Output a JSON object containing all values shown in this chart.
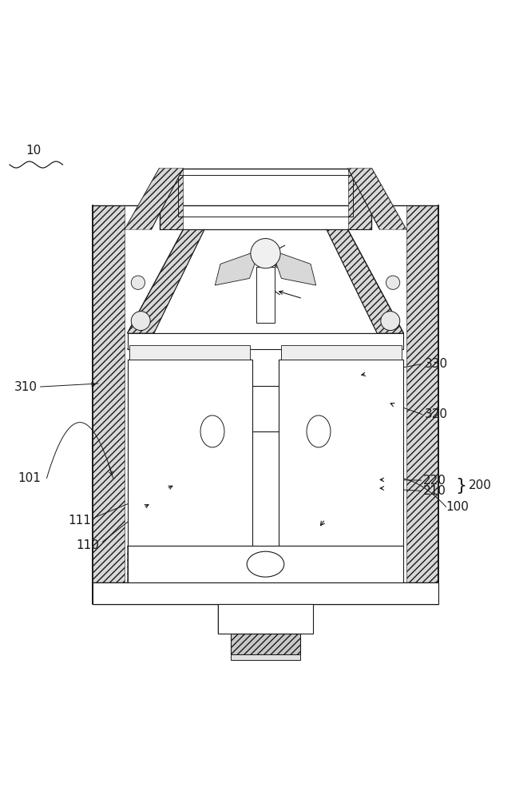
{
  "bg_color": "#ffffff",
  "line_color": "#1a1a1a",
  "label_color": "#1a1a1a",
  "fig_width": 6.65,
  "fig_height": 10.0,
  "dpi": 100
}
